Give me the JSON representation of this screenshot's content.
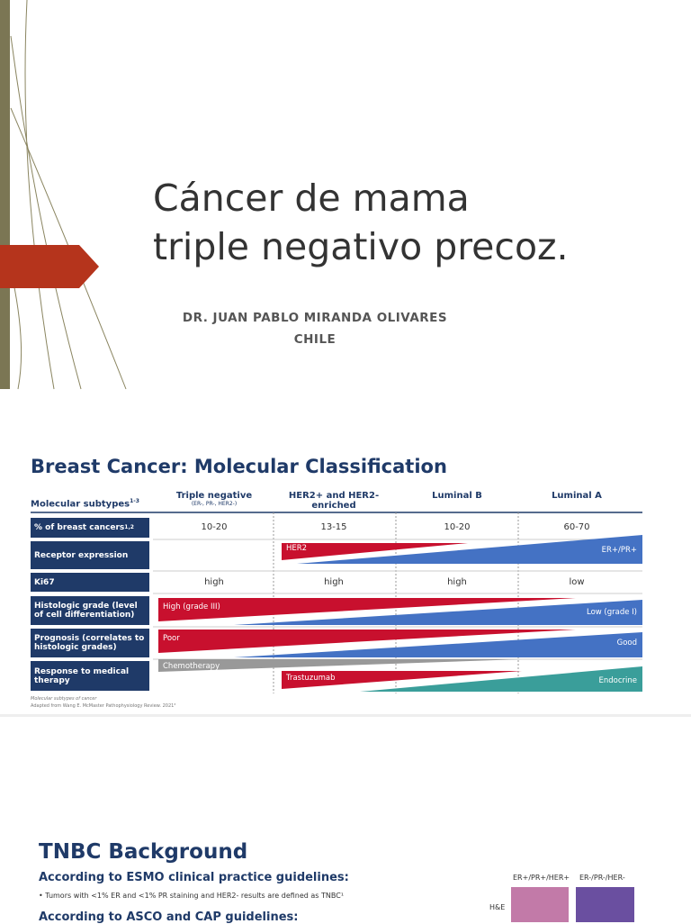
{
  "slide1": {
    "title_line1": "Cáncer de mama",
    "title_line2": "triple negativo precoz.",
    "author": "DR. JUAN PABLO MIRANDA OLIVARES",
    "country": "CHILE"
  },
  "slide2": {
    "title": "Breast Cancer: Molecular Classification",
    "header": {
      "label": "Molecular subtypes",
      "label_sup": "1-3",
      "columns": [
        {
          "name": "Triple negative",
          "sub": "(ER-, PR-, HER2-)"
        },
        {
          "name": "HER2+ and HER2-enriched"
        },
        {
          "name": "Luminal B"
        },
        {
          "name": "Luminal A"
        }
      ]
    },
    "rows": [
      {
        "label": "% of breast cancers",
        "sup": "1,2",
        "values": [
          "10-20",
          "13-15",
          "10-20",
          "60-70"
        ]
      },
      {
        "label": "Receptor expression",
        "wedges": [
          "HER2",
          "ER+/PR+"
        ]
      },
      {
        "label": "Ki67",
        "values": [
          "high",
          "high",
          "high",
          "low"
        ]
      },
      {
        "label": "Histologic grade (level of cell differentiation)",
        "wedges": [
          "High (grade III)",
          "Low (grade I)"
        ]
      },
      {
        "label": "Prognosis (correlates to histologic grades)",
        "wedges": [
          "Poor",
          "Good"
        ]
      },
      {
        "label": "Response to medical therapy",
        "wedges": [
          "Chemotherapy",
          "Trastuzumab",
          "Endocrine"
        ]
      }
    ],
    "footnote": [
      "Molecular subtypes of cancer",
      "Adapted from Wang E. McMaster Pathophysiology Review. 2021³"
    ]
  },
  "slide3": {
    "title": "TNBC Background",
    "heading1": "According to ESMO clinical practice guidelines:",
    "bullet1": "Tumors with <1% ER and <1% PR staining and HER2- results are defined as TNBC¹",
    "heading2": "According to ASCO and CAP guidelines:",
    "image_labels": [
      "ER+/PR+/HER+",
      "ER-/PR-/HER-"
    ],
    "row_label": "H&E"
  }
}
